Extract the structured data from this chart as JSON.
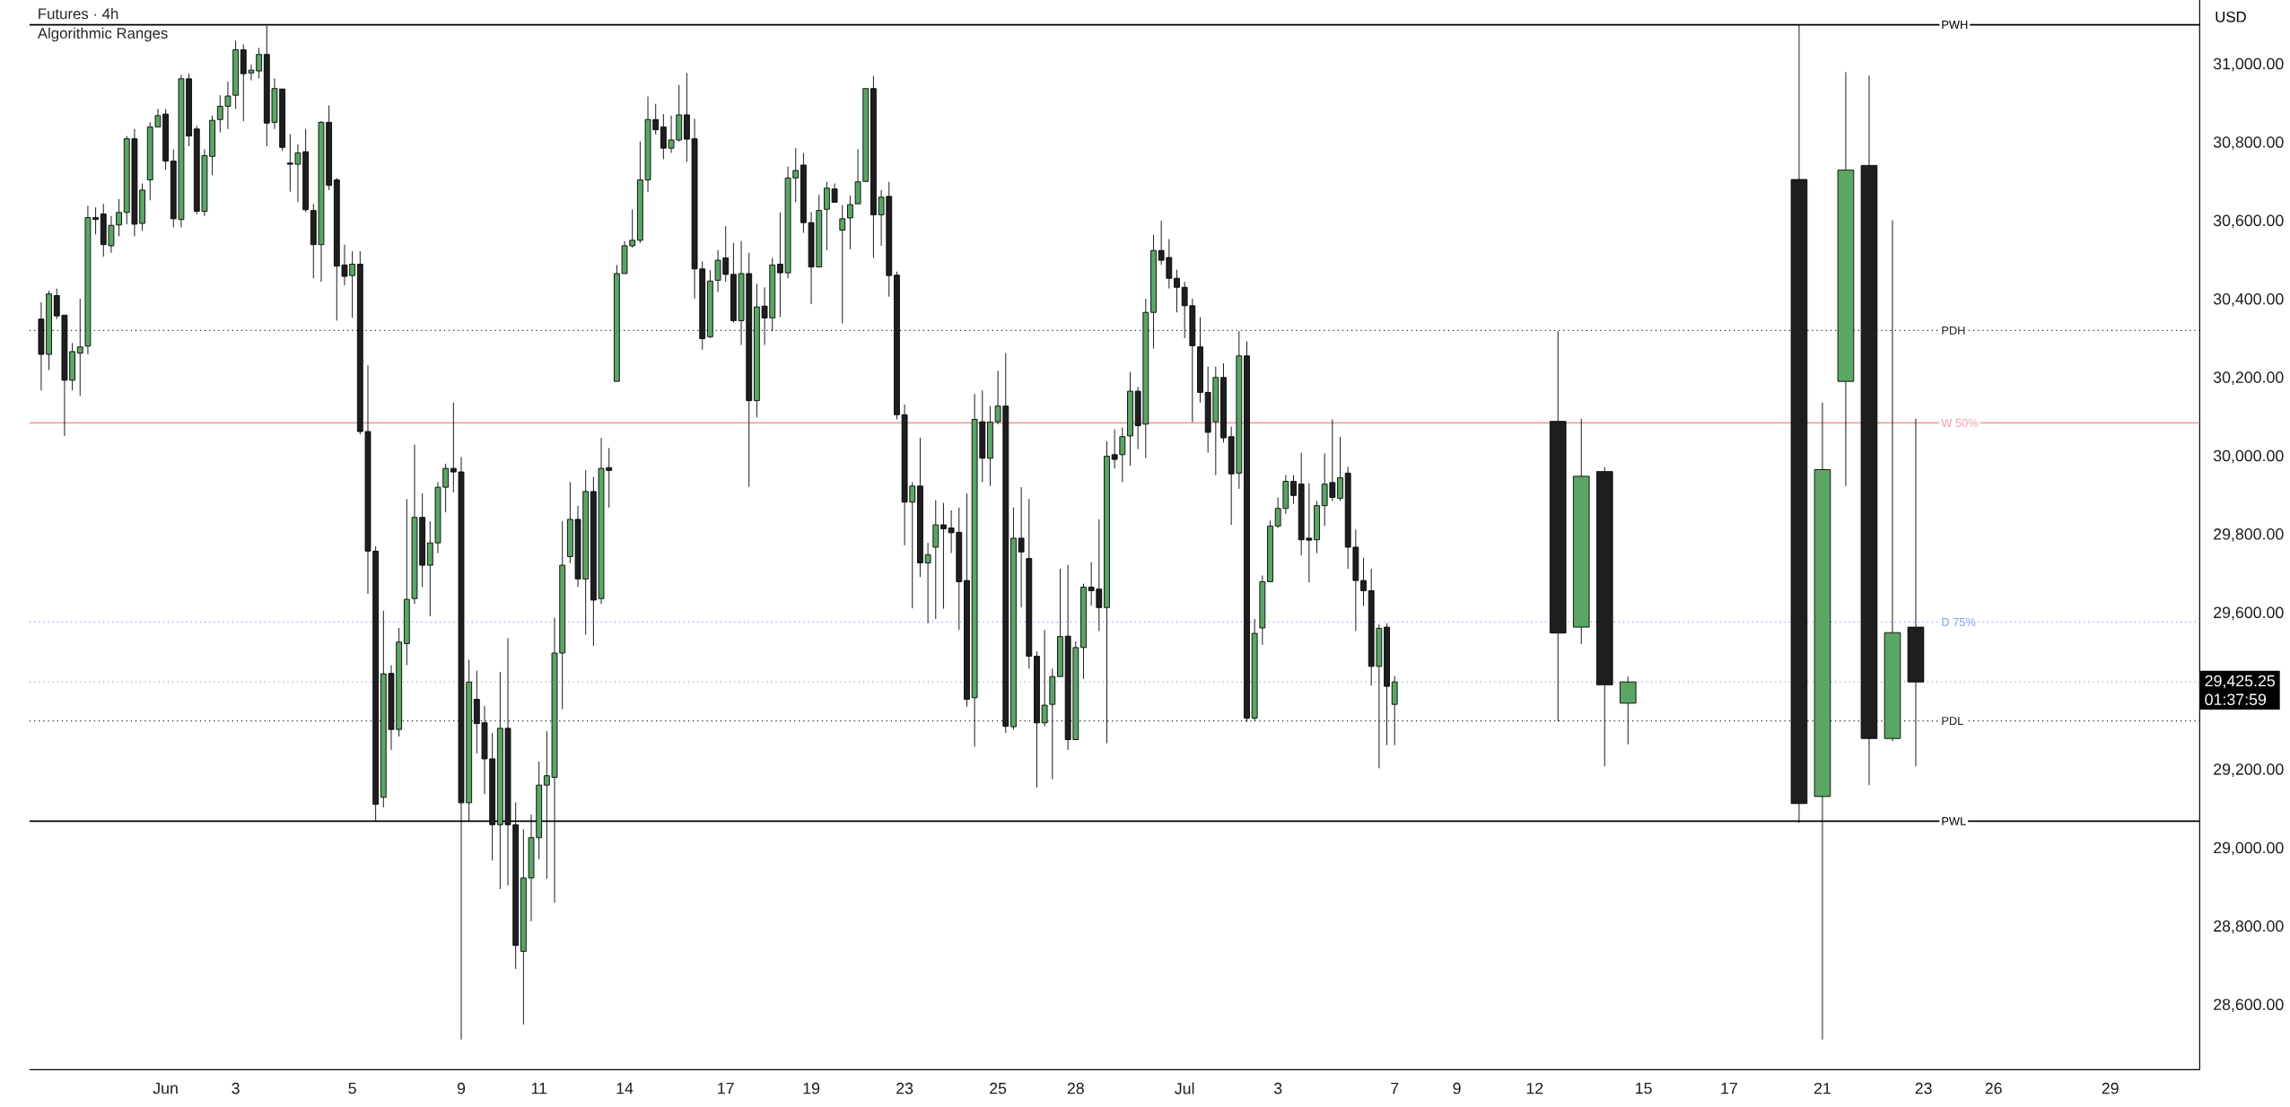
{
  "chart_data": {
    "type": "candlestick",
    "title": "Futures · 4h",
    "subtitle": "Algorithmic Ranges",
    "ylabel": "USD",
    "categories": [
      null,
      null,
      null,
      null,
      null,
      null,
      null,
      null,
      null,
      null,
      null,
      null,
      null,
      null,
      null,
      null,
      null,
      "Jun",
      null,
      null,
      null,
      null,
      null,
      null,
      null,
      null,
      "3",
      null,
      null,
      null,
      null,
      null,
      null,
      null,
      null,
      null,
      null,
      null,
      null,
      null,
      null,
      "5",
      null,
      null,
      null,
      null,
      null,
      null,
      null,
      null,
      null,
      null,
      null,
      null,
      null,
      "9",
      null,
      null,
      null,
      null,
      null,
      null,
      null,
      null,
      null,
      "11",
      null,
      null,
      null,
      null,
      null,
      null,
      null,
      null,
      null,
      null,
      "14",
      null,
      null,
      null,
      null,
      null,
      null,
      null,
      null,
      null,
      null,
      null,
      null,
      "17",
      null,
      null,
      null,
      null,
      null,
      null,
      null,
      null,
      null,
      null,
      "19",
      null,
      null,
      null,
      null,
      null,
      null,
      null,
      null,
      null,
      null,
      null,
      "23",
      null,
      null,
      null,
      null,
      null,
      null,
      null,
      null,
      null,
      null,
      null,
      "25",
      null,
      null,
      null,
      null,
      null,
      null,
      null,
      null,
      null,
      "28",
      null,
      null,
      null,
      null,
      null,
      null,
      null,
      null,
      null,
      null,
      null,
      null,
      null,
      "Jul",
      null,
      null,
      null,
      null,
      null,
      null,
      null,
      null,
      null,
      null,
      null,
      "3",
      null,
      null,
      null,
      null,
      null,
      null,
      null,
      null,
      null,
      null,
      null,
      null,
      null,
      null,
      "7",
      null,
      null,
      null,
      null,
      null,
      null,
      null,
      "9",
      null,
      null,
      null,
      null,
      null,
      null,
      null,
      null,
      null,
      "12",
      null,
      null,
      null,
      null,
      null,
      null,
      null,
      null,
      null,
      null,
      null,
      null,
      null,
      "15",
      null,
      null,
      null,
      null,
      null,
      null,
      null,
      null,
      null,
      null,
      "17",
      null,
      null,
      null,
      null,
      null,
      null,
      null,
      null,
      null,
      null,
      null,
      "21",
      null,
      null,
      null,
      null,
      null,
      null,
      null,
      null,
      null,
      null,
      null,
      null,
      "23",
      null,
      null,
      null,
      null,
      null,
      null,
      null,
      null,
      "26",
      null,
      null,
      null,
      null,
      null,
      null,
      null,
      null,
      null,
      null,
      null,
      null,
      null,
      null,
      "29",
      null,
      null,
      null,
      null,
      null,
      null,
      null,
      null,
      null,
      null,
      null
    ],
    "ohlc": [
      null,
      [
        30351,
        30394,
        30169,
        30261
      ],
      [
        30261,
        30423,
        30221,
        30415
      ],
      [
        30411,
        30429,
        30351,
        30359
      ],
      [
        30361,
        30361,
        30053,
        30195
      ],
      [
        30195,
        30290,
        30169,
        30268
      ],
      [
        30264,
        30403,
        30155,
        30280
      ],
      [
        30282,
        30640,
        30261,
        30610
      ],
      [
        30610,
        30636,
        30567,
        30605
      ],
      [
        30619,
        30645,
        30510,
        30541
      ],
      [
        30538,
        30614,
        30520,
        30590
      ],
      [
        30591,
        30657,
        30562,
        30623
      ],
      [
        30623,
        30818,
        30593,
        30811
      ],
      [
        30811,
        30836,
        30562,
        30593
      ],
      [
        30595,
        30697,
        30576,
        30680
      ],
      [
        30706,
        30853,
        30654,
        30841
      ],
      [
        30841,
        30887,
        30841,
        30870
      ],
      [
        30874,
        30887,
        30732,
        30754
      ],
      [
        30754,
        30784,
        30585,
        30607
      ],
      [
        30605,
        30974,
        30585,
        30964
      ],
      [
        30964,
        30977,
        30792,
        30818
      ],
      [
        30836,
        30844,
        30619,
        30626
      ],
      [
        30626,
        30784,
        30614,
        30768
      ],
      [
        30766,
        30870,
        30718,
        30858
      ],
      [
        30860,
        30922,
        30827,
        30894
      ],
      [
        30894,
        30957,
        30836,
        30920
      ],
      [
        30922,
        31061,
        30887,
        31038
      ],
      [
        31038,
        31052,
        30856,
        30977
      ],
      [
        30979,
        31000,
        30960,
        30986
      ],
      [
        30984,
        31043,
        30965,
        31026
      ],
      [
        31026,
        31099,
        30792,
        30851
      ],
      [
        30853,
        30965,
        30836,
        30939
      ],
      [
        30938,
        30938,
        30780,
        30789
      ],
      [
        30749,
        30823,
        30676,
        30746
      ],
      [
        30746,
        30797,
        30649,
        30775
      ],
      [
        30778,
        30836,
        30624,
        30630
      ],
      [
        30628,
        30645,
        30455,
        30541
      ],
      [
        30541,
        30856,
        30446,
        30853
      ],
      [
        30853,
        30896,
        30680,
        30692
      ],
      [
        30706,
        30711,
        30347,
        30486
      ],
      [
        30489,
        30541,
        30437,
        30460
      ],
      [
        30462,
        30524,
        30354,
        30491
      ],
      [
        30491,
        30524,
        30057,
        30064
      ],
      [
        30064,
        30233,
        29650,
        29759
      ],
      [
        29759,
        29771,
        29070,
        29113
      ],
      [
        29131,
        29607,
        29105,
        29446
      ],
      [
        29447,
        29468,
        29252,
        29304
      ],
      [
        29304,
        29563,
        29286,
        29527
      ],
      [
        29523,
        29892,
        29468,
        29636
      ],
      [
        29638,
        30031,
        29624,
        29845
      ],
      [
        29845,
        29906,
        29667,
        29723
      ],
      [
        29723,
        29835,
        29593,
        29780
      ],
      [
        29780,
        29935,
        29754,
        29922
      ],
      [
        29922,
        29982,
        29858,
        29970
      ],
      [
        29970,
        30138,
        29909,
        29961
      ],
      [
        29961,
        29999,
        28513,
        29117
      ],
      [
        29117,
        29482,
        29070,
        29425
      ],
      [
        29381,
        29454,
        29243,
        29319
      ],
      [
        29321,
        29364,
        29139,
        29229
      ],
      [
        29229,
        29295,
        28970,
        29061
      ],
      [
        29061,
        29451,
        28897,
        29307
      ],
      [
        29307,
        29537,
        28906,
        29061
      ],
      [
        29061,
        29118,
        28693,
        28753
      ],
      [
        28738,
        29049,
        28551,
        28925
      ],
      [
        28925,
        29087,
        28815,
        29028
      ],
      [
        29028,
        29222,
        28973,
        29162
      ],
      [
        29162,
        29300,
        28923,
        29186
      ],
      [
        29182,
        29589,
        28862,
        29499
      ],
      [
        29499,
        29835,
        29356,
        29723
      ],
      [
        29745,
        29935,
        29728,
        29840
      ],
      [
        29840,
        29875,
        29667,
        29688
      ],
      [
        29688,
        29965,
        29546,
        29911
      ],
      [
        29911,
        29948,
        29517,
        29634
      ],
      [
        29638,
        30048,
        29624,
        29970
      ],
      [
        29972,
        30022,
        29870,
        29965
      ],
      [
        30192,
        30489,
        30192,
        30467
      ],
      [
        30467,
        30550,
        30467,
        30538
      ],
      [
        30538,
        30631,
        30533,
        30552
      ],
      [
        30552,
        30804,
        30545,
        30706
      ],
      [
        30706,
        30919,
        30675,
        30860
      ],
      [
        30860,
        30900,
        30822,
        30834
      ],
      [
        30841,
        30874,
        30759,
        30787
      ],
      [
        30787,
        30870,
        30775,
        30808
      ],
      [
        30808,
        30948,
        30804,
        30872
      ],
      [
        30872,
        30979,
        30752,
        30810
      ],
      [
        30811,
        30862,
        30403,
        30479
      ],
      [
        30479,
        30498,
        30273,
        30301
      ],
      [
        30306,
        30476,
        30302,
        30448
      ],
      [
        30450,
        30527,
        30420,
        30501
      ],
      [
        30507,
        30588,
        30446,
        30465
      ],
      [
        30465,
        30545,
        30342,
        30347
      ],
      [
        30347,
        30550,
        30285,
        30467
      ],
      [
        30467,
        30520,
        29923,
        30143
      ],
      [
        30143,
        30441,
        30100,
        30382
      ],
      [
        30384,
        30432,
        30285,
        30354
      ],
      [
        30354,
        30507,
        30320,
        30489
      ],
      [
        30491,
        30623,
        30356,
        30469
      ],
      [
        30469,
        30740,
        30455,
        30711
      ],
      [
        30711,
        30787,
        30649,
        30730
      ],
      [
        30744,
        30775,
        30571,
        30597
      ],
      [
        30597,
        30624,
        30389,
        30484
      ],
      [
        30484,
        30668,
        30484,
        30628
      ],
      [
        30631,
        30701,
        30527,
        30685
      ],
      [
        30683,
        30697,
        30649,
        30649
      ],
      [
        30578,
        30642,
        30340,
        30607
      ],
      [
        30609,
        30666,
        30529,
        30643
      ],
      [
        30645,
        30784,
        30645,
        30701
      ],
      [
        30702,
        30939,
        30702,
        30939
      ],
      [
        30939,
        30971,
        30507,
        30617
      ],
      [
        30617,
        30680,
        30538,
        30662
      ],
      [
        30664,
        30701,
        30408,
        30462
      ],
      [
        30463,
        30472,
        30095,
        30107
      ],
      [
        30107,
        30133,
        29774,
        29884
      ],
      [
        29884,
        29935,
        29613,
        29925
      ],
      [
        29925,
        30048,
        29693,
        29729
      ],
      [
        29729,
        29780,
        29575,
        29750
      ],
      [
        29769,
        29889,
        29586,
        29826
      ],
      [
        29826,
        29882,
        29612,
        29816
      ],
      [
        29818,
        29863,
        29754,
        29806
      ],
      [
        29807,
        29870,
        29558,
        29681
      ],
      [
        29684,
        29906,
        29362,
        29381
      ],
      [
        29385,
        30160,
        29260,
        30095
      ],
      [
        30089,
        30169,
        29935,
        29996
      ],
      [
        29996,
        30129,
        29925,
        30088
      ],
      [
        30089,
        30219,
        30083,
        30129
      ],
      [
        30129,
        30264,
        29295,
        29312
      ],
      [
        29311,
        29870,
        29304,
        29792
      ],
      [
        29792,
        29922,
        29615,
        29757
      ],
      [
        29740,
        29892,
        29459,
        29491
      ],
      [
        29491,
        29503,
        29156,
        29321
      ],
      [
        29321,
        29558,
        29312,
        29366
      ],
      [
        29368,
        29459,
        29177,
        29439
      ],
      [
        29439,
        29714,
        29439,
        29541
      ],
      [
        29542,
        29724,
        29252,
        29278
      ],
      [
        29278,
        29529,
        29278,
        29513
      ],
      [
        29513,
        29676,
        29433,
        29667
      ],
      [
        29667,
        29731,
        29620,
        29658
      ],
      [
        29662,
        29840,
        29555,
        29615
      ],
      [
        29615,
        30039,
        29269,
        30001
      ],
      [
        30005,
        30070,
        29970,
        29993
      ],
      [
        30005,
        30074,
        29935,
        30051
      ],
      [
        30053,
        30216,
        29977,
        30167
      ],
      [
        30167,
        30178,
        30019,
        30079
      ],
      [
        30083,
        30403,
        29996,
        30368
      ],
      [
        30368,
        30566,
        30276,
        30526
      ],
      [
        30526,
        30602,
        30489,
        30501
      ],
      [
        30508,
        30555,
        30429,
        30455
      ],
      [
        30455,
        30477,
        30368,
        30432
      ],
      [
        30432,
        30446,
        30302,
        30385
      ],
      [
        30385,
        30403,
        30088,
        30283
      ],
      [
        30280,
        30356,
        30138,
        30164
      ],
      [
        30164,
        30230,
        30010,
        30062
      ],
      [
        30089,
        30230,
        29953,
        30202
      ],
      [
        30202,
        30238,
        30036,
        30048
      ],
      [
        30051,
        30077,
        29826,
        29956
      ],
      [
        29958,
        30320,
        29918,
        30257
      ],
      [
        30257,
        30294,
        29323,
        29333
      ],
      [
        29333,
        29586,
        29326,
        29549
      ],
      [
        29563,
        29697,
        29520,
        29681
      ],
      [
        29681,
        29837,
        29681,
        29823
      ],
      [
        29823,
        29896,
        29818,
        29868
      ],
      [
        29868,
        29953,
        29854,
        29937
      ],
      [
        29937,
        29953,
        29880,
        29901
      ],
      [
        29930,
        30010,
        29748,
        29788
      ],
      [
        29792,
        29932,
        29679,
        29787
      ],
      [
        29788,
        29887,
        29754,
        29875
      ],
      [
        29875,
        30008,
        29823,
        29930
      ],
      [
        29934,
        30095,
        29887,
        29896
      ],
      [
        29894,
        30050,
        29887,
        29946
      ],
      [
        29958,
        29974,
        29714,
        29769
      ],
      [
        29769,
        29814,
        29555,
        29684
      ],
      [
        29684,
        29742,
        29619,
        29658
      ],
      [
        29658,
        29714,
        29416,
        29465
      ],
      [
        29465,
        29572,
        29205,
        29562
      ],
      [
        29565,
        29575,
        29264,
        29414
      ],
      [
        29368,
        29440,
        29264,
        29425.25
      ],
      null,
      null,
      null,
      null,
      null,
      null,
      null,
      null,
      null,
      null,
      null,
      null,
      null,
      null,
      null,
      null,
      null,
      null,
      null,
      null,
      [
        30090,
        30320,
        29325,
        29550
      ],
      null,
      null,
      [
        29565,
        30097,
        29522,
        29950
      ],
      null,
      null,
      [
        29962,
        29973,
        29210,
        29418
      ],
      null,
      null,
      [
        29371,
        29439,
        29266,
        29425.25
      ],
      null,
      null,
      null,
      null,
      null,
      null,
      null,
      null,
      null,
      null,
      null,
      null,
      null,
      null,
      null,
      null,
      null,
      null,
      null,
      null,
      null,
      [
        30707,
        31102,
        29066,
        29115
      ],
      null,
      null,
      [
        29133,
        30138,
        28513,
        29967
      ],
      null,
      null,
      [
        30192,
        30981,
        29925,
        30731
      ],
      null,
      null,
      [
        30743,
        30972,
        29162,
        29281
      ],
      null,
      null,
      [
        29281,
        30603,
        29274,
        29551
      ],
      null,
      null,
      [
        29565,
        30097,
        29210,
        29425.25
      ],
      null,
      null,
      null,
      null,
      null,
      null,
      null,
      null,
      null,
      null,
      null,
      null,
      null,
      null,
      null,
      null,
      null,
      null,
      null,
      null,
      null,
      null,
      null,
      null,
      null,
      null,
      null,
      null,
      null,
      null,
      null,
      null,
      null,
      null,
      null,
      null
    ],
    "colors": [
      null,
      "#1e1e1e",
      "#5ba565",
      "#1e1e1e",
      "#1e1e1e",
      "#5ba565",
      "#5ba565",
      "#5ba565",
      "#1e1e1e",
      "#1e1e1e",
      "#5ba565",
      "#5ba565",
      "#5ba565",
      "#1e1e1e",
      "#5ba565",
      "#5ba565",
      "#5ba565",
      "#1e1e1e",
      "#1e1e1e",
      "#5ba565",
      "#1e1e1e",
      "#1e1e1e",
      "#5ba565",
      "#5ba565",
      "#5ba565",
      "#5ba565",
      "#5ba565",
      "#1e1e1e",
      "#5ba565",
      "#5ba565",
      "#1e1e1e",
      "#5ba565",
      "#1e1e1e",
      "#1e1e1e",
      "#5ba565",
      "#1e1e1e",
      "#1e1e1e",
      "#5ba565",
      "#1e1e1e",
      "#1e1e1e",
      "#1e1e1e",
      "#5ba565",
      "#1e1e1e",
      "#1e1e1e",
      "#1e1e1e",
      "#5ba565",
      "#1e1e1e",
      "#5ba565",
      "#5ba565",
      "#5ba565",
      "#1e1e1e",
      "#5ba565",
      "#5ba565",
      "#5ba565",
      "#1e1e1e",
      "#1e1e1e",
      "#5ba565",
      "#1e1e1e",
      "#1e1e1e",
      "#1e1e1e",
      "#5ba565",
      "#1e1e1e",
      "#1e1e1e",
      "#5ba565",
      "#5ba565",
      "#5ba565",
      "#5ba565",
      "#5ba565",
      "#5ba565",
      "#5ba565",
      "#1e1e1e",
      "#5ba565",
      "#1e1e1e",
      "#5ba565",
      "#1e1e1e",
      "#5ba565",
      "#5ba565",
      "#5ba565",
      "#5ba565",
      "#5ba565",
      "#1e1e1e",
      "#1e1e1e",
      "#5ba565",
      "#5ba565",
      "#1e1e1e",
      "#1e1e1e",
      "#1e1e1e",
      "#5ba565",
      "#5ba565",
      "#1e1e1e",
      "#1e1e1e",
      "#5ba565",
      "#1e1e1e",
      "#5ba565",
      "#1e1e1e",
      "#5ba565",
      "#1e1e1e",
      "#5ba565",
      "#5ba565",
      "#1e1e1e",
      "#1e1e1e",
      "#5ba565",
      "#5ba565",
      "#1e1e1e",
      "#5ba565",
      "#5ba565",
      "#5ba565",
      "#5ba565",
      "#1e1e1e",
      "#5ba565",
      "#1e1e1e",
      "#1e1e1e",
      "#1e1e1e",
      "#5ba565",
      "#1e1e1e",
      "#5ba565",
      "#5ba565",
      "#1e1e1e",
      "#1e1e1e",
      "#1e1e1e",
      "#1e1e1e",
      "#5ba565",
      "#1e1e1e",
      "#5ba565",
      "#5ba565",
      "#1e1e1e",
      "#5ba565",
      "#1e1e1e",
      "#1e1e1e",
      "#1e1e1e",
      "#5ba565",
      "#5ba565",
      "#5ba565",
      "#1e1e1e",
      "#5ba565",
      "#5ba565",
      "#1e1e1e",
      "#1e1e1e",
      "#5ba565",
      "#1e1e1e",
      "#5ba565",
      "#5ba565",
      "#1e1e1e",
      "#5ba565",
      "#5ba565",
      "#1e1e1e",
      "#1e1e1e",
      "#1e1e1e",
      "#1e1e1e",
      "#1e1e1e",
      "#1e1e1e",
      "#1e1e1e",
      "#5ba565",
      "#1e1e1e",
      "#1e1e1e",
      "#5ba565",
      "#1e1e1e",
      "#5ba565",
      "#5ba565",
      "#5ba565",
      "#5ba565",
      "#5ba565",
      "#1e1e1e",
      "#1e1e1e",
      "#1e1e1e",
      "#5ba565",
      "#5ba565",
      "#1e1e1e",
      "#5ba565",
      "#1e1e1e",
      "#1e1e1e",
      "#1e1e1e",
      "#1e1e1e",
      "#5ba565",
      "#1e1e1e",
      "#5ba565",
      null,
      null,
      null,
      null,
      null,
      null,
      null,
      null,
      null,
      null,
      null,
      null,
      null,
      null,
      null,
      null,
      null,
      null,
      null,
      null,
      "#1e1e1e",
      null,
      null,
      "#5ba565",
      null,
      null,
      "#1e1e1e",
      null,
      null,
      "#5ba565",
      null,
      null,
      null,
      null,
      null,
      null,
      null,
      null,
      null,
      null,
      null,
      null,
      null,
      null,
      null,
      null,
      null,
      null,
      null,
      null,
      null,
      "#1e1e1e",
      null,
      null,
      "#5ba565",
      null,
      null,
      "#5ba565",
      null,
      null,
      "#1e1e1e",
      null,
      null,
      "#5ba565",
      null,
      null,
      "#1e1e1e",
      null,
      null,
      null,
      null,
      null,
      null,
      null,
      null,
      null,
      null,
      null,
      null,
      null,
      null,
      null,
      null,
      null,
      null,
      null,
      null,
      null,
      null,
      null,
      null,
      null,
      null,
      null,
      null,
      null,
      null,
      null,
      null,
      null,
      null,
      null,
      null
    ],
    "ylim": [
      28436,
      31165
    ],
    "yticks": [
      {
        "value": 28600,
        "label": "28,600.00"
      },
      {
        "value": 28800,
        "label": "28,800.00"
      },
      {
        "value": 29000,
        "label": "29,000.00"
      },
      {
        "value": 29200,
        "label": "29,200.00"
      },
      {
        "value": 29600,
        "label": "29,600.00"
      },
      {
        "value": 29800,
        "label": "29,800.00"
      },
      {
        "value": 30000,
        "label": "30,000.00"
      },
      {
        "value": 30200,
        "label": "30,200.00"
      },
      {
        "value": 30400,
        "label": "30,400.00"
      },
      {
        "value": 30600,
        "label": "30,600.00"
      },
      {
        "value": 30800,
        "label": "30,800.00"
      },
      {
        "value": 31000,
        "label": "31,000.00"
      }
    ],
    "ref_lines": [
      {
        "axis": "y",
        "value": 29425.25,
        "color": "#a0a0a0",
        "line_style": "dotted"
      },
      {
        "axis": "y",
        "value": 30322,
        "label": "PDH",
        "color": "#1e1e1e",
        "line_style": "dotted"
      },
      {
        "axis": "y",
        "value": 29326,
        "label": "PDL",
        "color": "#1e1e1e",
        "line_style": "dotted"
      },
      {
        "axis": "y",
        "value": 29578,
        "label": "D 75%",
        "color": "#7b9ef0",
        "line_style": "dotted"
      },
      {
        "axis": "y",
        "value": 30086,
        "label": "W 50%",
        "color": "#f0a0a8",
        "line_style": "solid"
      },
      {
        "axis": "y",
        "value": 31102,
        "label": "PWH",
        "color": "#000000",
        "line_style": "solid"
      },
      {
        "axis": "y",
        "value": 29070,
        "label": "PWL",
        "color": "#000000",
        "line_style": "solid"
      }
    ],
    "annotations": [
      "29,425.25",
      "01:37:59"
    ]
  }
}
